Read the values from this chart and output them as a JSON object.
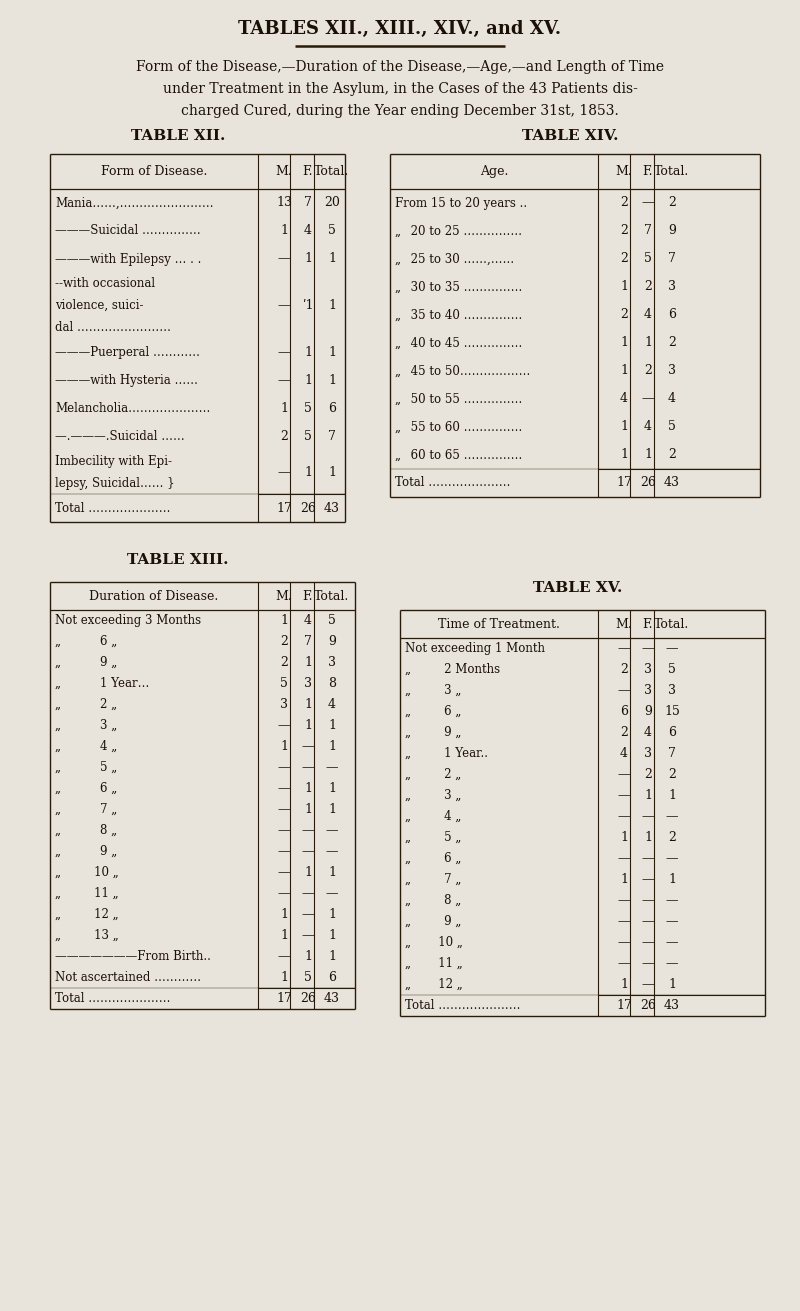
{
  "bg_color": "#e8e4dc",
  "text_color": "#1a1008",
  "line_color": "#2a1a08",
  "main_title": "TABLES XII., XIII., XIV., and XV.",
  "subtitle_lines": [
    "Form of the Disease,—Duration of the Disease,—Age,—and Length of Time",
    "under Treatment in the Asylum, in the Cases of the 43 Patients dis-",
    "charged Cured, during the Year ending December 31st, 1853."
  ],
  "table12_title": "TABLE XII.",
  "table14_title": "TABLE XIV.",
  "table13_title": "TABLE XIII.",
  "table15_title": "TABLE XV.",
  "table12_headers": [
    "Form of Disease.",
    "M.",
    "F.",
    "Total."
  ],
  "table12_rows": [
    [
      "Mania……,……………………",
      "13",
      "7",
      "20"
    ],
    [
      "———Suicidal ……………",
      "1",
      "4",
      "5"
    ],
    [
      "———with Epilepsy … . .",
      "—",
      "1",
      "1"
    ],
    [
      "MULTILINE|--with occasional\nviolence, suici-\ndal ……………………|3",
      "—",
      "ʹ1",
      "1"
    ],
    [
      "———Puerperal …………",
      "—",
      "1",
      "1"
    ],
    [
      "———with Hysteria ……",
      "—",
      "1",
      "1"
    ],
    [
      "Melancholia…………………",
      "1",
      "5",
      "6"
    ],
    [
      "—.———.Suicidal ……",
      "2",
      "5",
      "7"
    ],
    [
      "MULTILINE|Imbecility with Epi-\nlepsy, Suicidal…… }|2",
      "—",
      "1",
      "1"
    ],
    [
      "Total …………………",
      "17",
      "26",
      "43"
    ]
  ],
  "table14_headers": [
    "Age.",
    "M.",
    "F.",
    "Total."
  ],
  "table14_rows": [
    [
      "From 15 to 20 years ..",
      "2",
      "—",
      "2"
    ],
    [
      "„  20 to 25 ……………",
      "2",
      "7",
      "9"
    ],
    [
      "„  25 to 30 ……,……",
      "2",
      "5",
      "7"
    ],
    [
      "„  30 to 35 ……………",
      "1",
      "2",
      "3"
    ],
    [
      "„  35 to 40 ……………",
      "2",
      "4",
      "6"
    ],
    [
      "„  40 to 45 ……………",
      "1",
      "1",
      "2"
    ],
    [
      "„  45 to 50………………",
      "1",
      "2",
      "3"
    ],
    [
      "„  50 to 55 ……………",
      "4",
      "—",
      "4"
    ],
    [
      "„  55 to 60 ……………",
      "1",
      "4",
      "5"
    ],
    [
      "„  60 to 65 ……………",
      "1",
      "1",
      "2"
    ],
    [
      "Total …………………",
      "17",
      "26",
      "43"
    ]
  ],
  "table13_headers": [
    "Duration of Disease.",
    "M.",
    "F.",
    "Total."
  ],
  "table13_rows": [
    [
      "Not exceeding 3 Months",
      "1",
      "4",
      "5"
    ],
    [
      "„       6 „",
      "2",
      "7",
      "9"
    ],
    [
      "„       9 „",
      "2",
      "1",
      "3"
    ],
    [
      "„       1 Year…",
      "5",
      "3",
      "8"
    ],
    [
      "„       2 „",
      "3",
      "1",
      "4"
    ],
    [
      "„       3 „",
      "—",
      "1",
      "1"
    ],
    [
      "„       4 „",
      "1",
      "—",
      "1"
    ],
    [
      "„       5 „",
      "—",
      "—",
      "—"
    ],
    [
      "„       6 „",
      "—",
      "1",
      "1"
    ],
    [
      "„       7 „",
      "—",
      "1",
      "1"
    ],
    [
      "„       8 „",
      "—",
      "—",
      "—"
    ],
    [
      "„       9 „",
      "—",
      "—",
      "—"
    ],
    [
      "„      10 „",
      "—",
      "1",
      "1"
    ],
    [
      "„      11 „",
      "—",
      "—",
      "—"
    ],
    [
      "„      12 „",
      "1",
      "—",
      "1"
    ],
    [
      "„      13 „",
      "1",
      "—",
      "1"
    ],
    [
      "———————From Birth..",
      "—",
      "1",
      "1"
    ],
    [
      "Not ascertained …………",
      "1",
      "5",
      "6"
    ],
    [
      "Total …………………",
      "17",
      "26",
      "43"
    ]
  ],
  "table15_headers": [
    "Time of Treatment.",
    "M.",
    "F.",
    "Total."
  ],
  "table15_rows": [
    [
      "Not exceeding 1 Month",
      "—",
      "—",
      "—"
    ],
    [
      "„      2 Months",
      "2",
      "3",
      "5"
    ],
    [
      "„      3 „",
      "—",
      "3",
      "3"
    ],
    [
      "„      6 „",
      "6",
      "9",
      "15"
    ],
    [
      "„      9 „",
      "2",
      "4",
      "6"
    ],
    [
      "„      1 Year..",
      "4",
      "3",
      "7"
    ],
    [
      "„      2 „",
      "—",
      "2",
      "2"
    ],
    [
      "„      3 „",
      "—",
      "1",
      "1"
    ],
    [
      "„      4 „",
      "—",
      "—",
      "—"
    ],
    [
      "„      5 „",
      "1",
      "1",
      "2"
    ],
    [
      "„      6 „",
      "—",
      "—",
      "—"
    ],
    [
      "„      7 „",
      "1",
      "—",
      "1"
    ],
    [
      "„      8 „",
      "—",
      "—",
      "—"
    ],
    [
      "„      9 „",
      "—",
      "—",
      "—"
    ],
    [
      "„     10 „",
      "—",
      "—",
      "—"
    ],
    [
      "„     11 „",
      "—",
      "—",
      "—"
    ],
    [
      "„     12 „",
      "1",
      "—",
      "1"
    ],
    [
      "Total …………………",
      "17",
      "26",
      "43"
    ]
  ]
}
